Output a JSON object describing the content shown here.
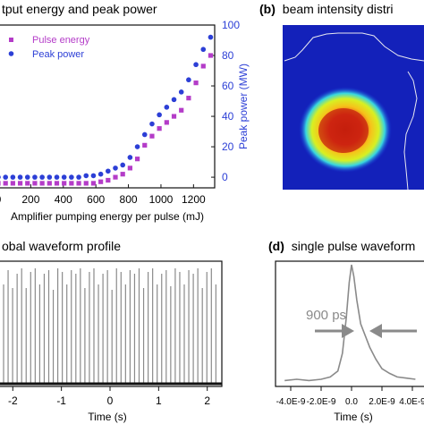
{
  "panels": {
    "a_title": "tput energy and peak power",
    "b_title": "beam intensity distri",
    "b_label": "(b)",
    "c_title": "obal waveform profile",
    "d_title": "single pulse waveform",
    "d_label": "(d)"
  },
  "colors": {
    "pulse_energy": "#b43cc8",
    "peak_power": "#2c3fd6",
    "right_axis": "#2c3fd6",
    "waveform": "#8a8a8a",
    "annotation": "#8a8a8a"
  },
  "chart_data": [
    {
      "type": "scatter",
      "panel": "a",
      "xlabel": "Amplifier pumping energy per pulse (mJ)",
      "ylabel_right": "Peak power (MW)",
      "xlim": [
        0,
        1330
      ],
      "ylim_right": [
        -7,
        100
      ],
      "x_ticks": [
        "0",
        "200",
        "400",
        "600",
        "800",
        "1000",
        "1200"
      ],
      "y_ticks_right": [
        "0",
        "20",
        "40",
        "60",
        "80",
        "100"
      ],
      "legend_position": "top-left",
      "series": [
        {
          "name": "Pulse energy",
          "marker": "square",
          "x": [
            0,
            45,
            90,
            135,
            180,
            225,
            270,
            315,
            360,
            405,
            450,
            495,
            540,
            585,
            630,
            675,
            720,
            765,
            810,
            855,
            900,
            945,
            990,
            1035,
            1080,
            1125,
            1170,
            1215,
            1260,
            1305
          ],
          "y": [
            -4,
            -4,
            -4,
            -4,
            -4,
            -4,
            -4,
            -4,
            -4,
            -4,
            -4,
            -4,
            -4,
            -4,
            -3,
            -2,
            0,
            2,
            6,
            12,
            21,
            27,
            32,
            36,
            40,
            44,
            52,
            62,
            73,
            80
          ]
        },
        {
          "name": "Peak power",
          "marker": "circle",
          "x": [
            0,
            45,
            90,
            135,
            180,
            225,
            270,
            315,
            360,
            405,
            450,
            495,
            540,
            585,
            630,
            675,
            720,
            765,
            810,
            855,
            900,
            945,
            990,
            1035,
            1080,
            1125,
            1170,
            1215,
            1260,
            1305
          ],
          "y": [
            0,
            0,
            0,
            0,
            0,
            0,
            0,
            0,
            0,
            0,
            0,
            0,
            1,
            1,
            2,
            4,
            6,
            8,
            13,
            20,
            28,
            35,
            41,
            46,
            51,
            56,
            64,
            74,
            84,
            92
          ]
        }
      ]
    },
    {
      "type": "line",
      "panel": "c",
      "xlabel": "Time (s)",
      "xlim": [
        -2.3,
        2.3
      ],
      "x_ticks": [
        "-2",
        "-1",
        "0",
        "1",
        "2"
      ]
    },
    {
      "type": "line",
      "panel": "d",
      "xlabel": "Time (s)",
      "xlim": [
        -5e-09,
        5e-09
      ],
      "x_ticks": [
        "-4.0E-9",
        "-2.0E-9",
        "0.0",
        "2.0E-9",
        "4.0E-9"
      ],
      "annotation": "900 ps",
      "x": [
        -4.4e-09,
        -3.6e-09,
        -2.8e-09,
        -2e-09,
        -1.4e-09,
        -9e-10,
        -6e-10,
        -3.5e-10,
        -1.5e-10,
        0.0,
        1.5e-10,
        3.5e-10,
        6e-10,
        9e-10,
        1.2e-09,
        1.6e-09,
        2e-09,
        2.5e-09,
        3e-09,
        3.6e-09,
        4.2e-09
      ],
      "y": [
        0.02,
        0.03,
        0.02,
        0.03,
        0.05,
        0.1,
        0.25,
        0.55,
        0.85,
        1.0,
        0.9,
        0.7,
        0.5,
        0.4,
        0.3,
        0.2,
        0.12,
        0.08,
        0.05,
        0.04,
        0.03
      ]
    }
  ]
}
